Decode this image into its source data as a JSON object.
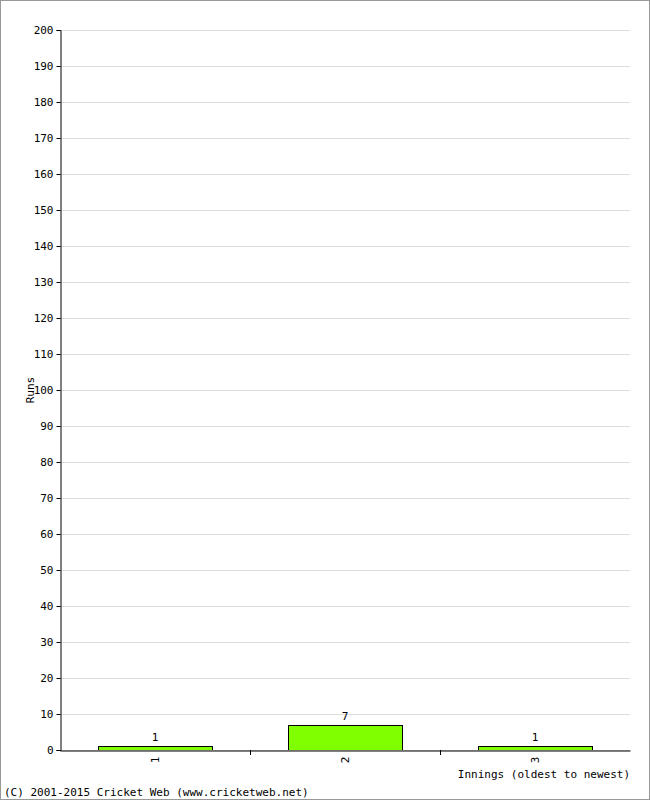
{
  "chart_data": {
    "type": "bar",
    "x_label": "Innings (oldest to newest)",
    "y_label": "Runs",
    "annotations": [
      "(C) 2001-2015 Cricket Web (www.cricketweb.net)"
    ],
    "categories": [
      "1",
      "2",
      "3"
    ],
    "values": [
      1,
      7,
      1
    ],
    "color": "#80ff00",
    "ylim": [
      0,
      200
    ],
    "yticks": [
      0,
      10,
      20,
      30,
      40,
      50,
      60,
      70,
      80,
      90,
      100,
      110,
      120,
      130,
      140,
      150,
      160,
      170,
      180,
      190,
      200
    ],
    "grid": true,
    "data_labels": true
  }
}
